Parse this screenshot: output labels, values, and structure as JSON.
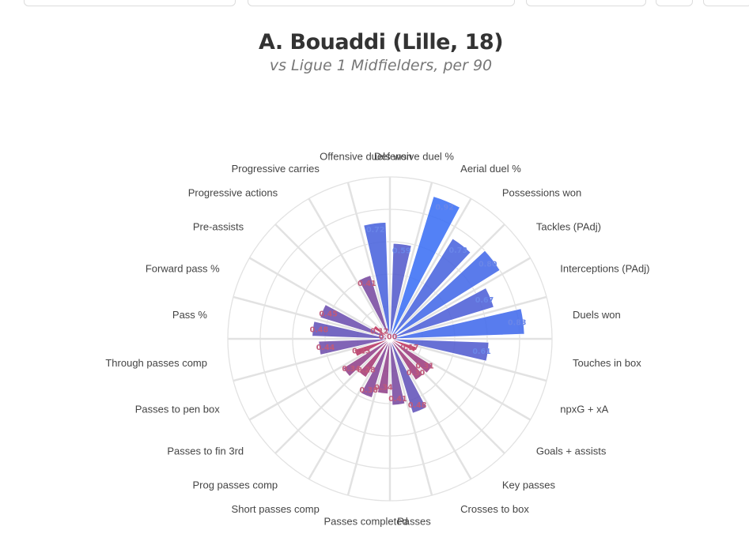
{
  "header": {
    "title": "A. Bouaddi (Lille, 18)",
    "subtitle": "vs Ligue 1 Midfielders, per 90"
  },
  "colors": {
    "high": "#3b6ff5",
    "mid": "#5b55c0",
    "low": "#c0305a",
    "grid": "#e2e2e2"
  },
  "chart_data": {
    "type": "polar-bar",
    "rlim": [
      0,
      1
    ],
    "grid": true,
    "categories": [
      "Defensive duel %",
      "Aerial duel %",
      "Possessions won",
      "Tackles (PAdj)",
      "Interceptions (PAdj)",
      "Duels won",
      "Touches in box",
      "npxG + xA",
      "Goals + assists",
      "Key passes",
      "Crosses to box",
      "Passes",
      "Passes completed",
      "Short passes comp",
      "Prog passes comp",
      "Passes to fin 3rd",
      "Passes to pen box",
      "Through passes comp",
      "Pass %",
      "Forward pass %",
      "Pre-assists",
      "Progressive actions",
      "Progressive carries",
      "Offensive duels won"
    ],
    "values": [
      0.59,
      0.92,
      0.73,
      0.8,
      0.67,
      0.83,
      0.61,
      0.17,
      0.31,
      0.3,
      0.48,
      0.41,
      0.34,
      0.38,
      0.28,
      0.34,
      0.23,
      0.44,
      0.48,
      0.45,
      0.12,
      0.0,
      0.41,
      0.72
    ],
    "labels": [
      "0.59",
      "0.92",
      "0.73",
      "0.80",
      "0.67",
      "0.83",
      "0.61",
      "0.17",
      "0.31",
      "0.30",
      "0.48",
      "0.41",
      "0.34",
      "0.38",
      "0.28",
      "0.34",
      "0.23",
      "0.44",
      "0.48",
      "0.45",
      "0.12",
      "0.00",
      "0.41",
      "0.72"
    ]
  }
}
